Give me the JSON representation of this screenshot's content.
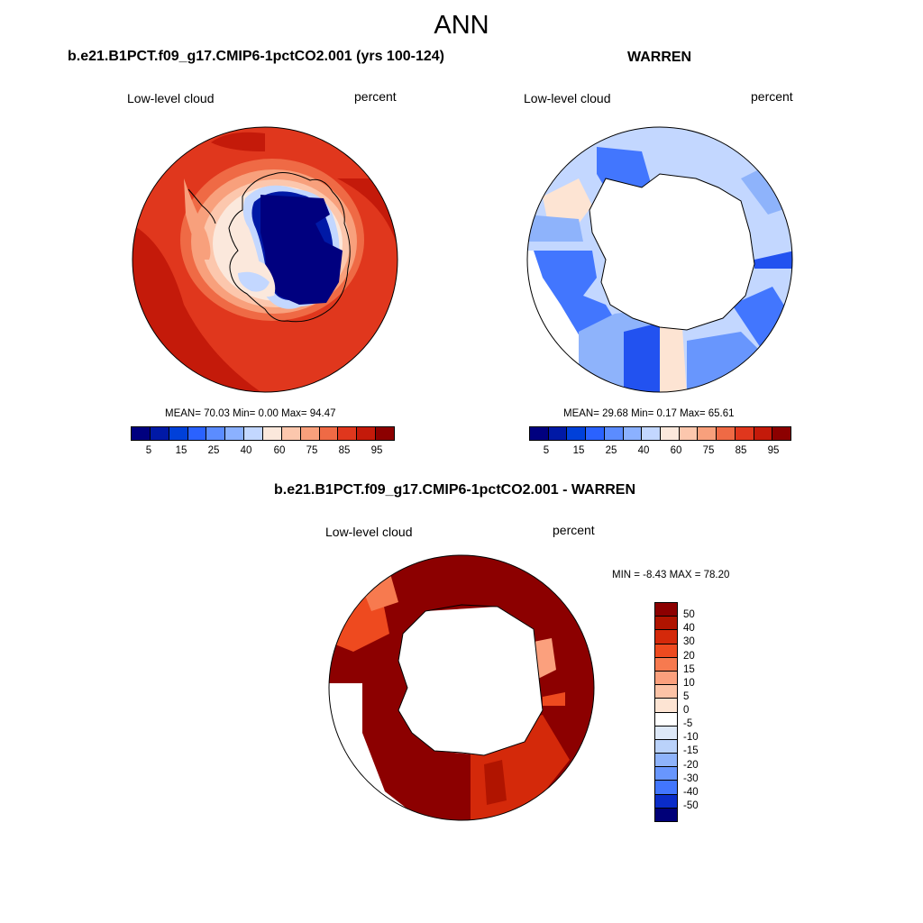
{
  "main_title": "ANN",
  "panels": [
    {
      "title": "b.e21.B1PCT.f09_g17.CMIP6-1pctCO2.001 (yrs 100-124)",
      "variable": "Low-level cloud",
      "units": "percent",
      "stats": "MEAN=  70.03  Min=   0.00  Max=  94.47"
    },
    {
      "title": "WARREN",
      "variable": "Low-level cloud",
      "units": "percent",
      "stats": "MEAN=  29.68  Min=   0.17  Max=  65.61"
    },
    {
      "title": "b.e21.B1PCT.f09_g17.CMIP6-1pctCO2.001 - WARREN",
      "variable": "Low-level cloud",
      "units": "percent",
      "stats": "MIN =  -8.43 MAX =  78.20"
    }
  ],
  "colorbar_abs": {
    "colors": [
      "#00007f",
      "#0019a6",
      "#0040d9",
      "#2a62ff",
      "#5b8cff",
      "#8bb1ff",
      "#c3d7ff",
      "#fbe8dc",
      "#fcc7ad",
      "#f8a07c",
      "#ef6a45",
      "#e0371d",
      "#c41a0a",
      "#8c0000"
    ],
    "ticks": [
      "5",
      "15",
      "25",
      "40",
      "60",
      "75",
      "85",
      "95"
    ]
  },
  "colorbar_diff": {
    "colors": [
      "#8c0000",
      "#b01400",
      "#d4290a",
      "#ee4a1f",
      "#f77a4f",
      "#fba07d",
      "#fcc3a6",
      "#fde4d3",
      "#ffffff",
      "#dde8f8",
      "#bad2fa",
      "#8eb3fb",
      "#6896fd",
      "#4276fe",
      "#2252f0",
      "#0a2cc8",
      "#00159e",
      "#000078"
    ],
    "ticks": [
      "50",
      "40",
      "30",
      "20",
      "15",
      "10",
      "5",
      "0",
      "-5",
      "-10",
      "-15",
      "-20",
      "-30",
      "-40",
      "-50"
    ]
  }
}
